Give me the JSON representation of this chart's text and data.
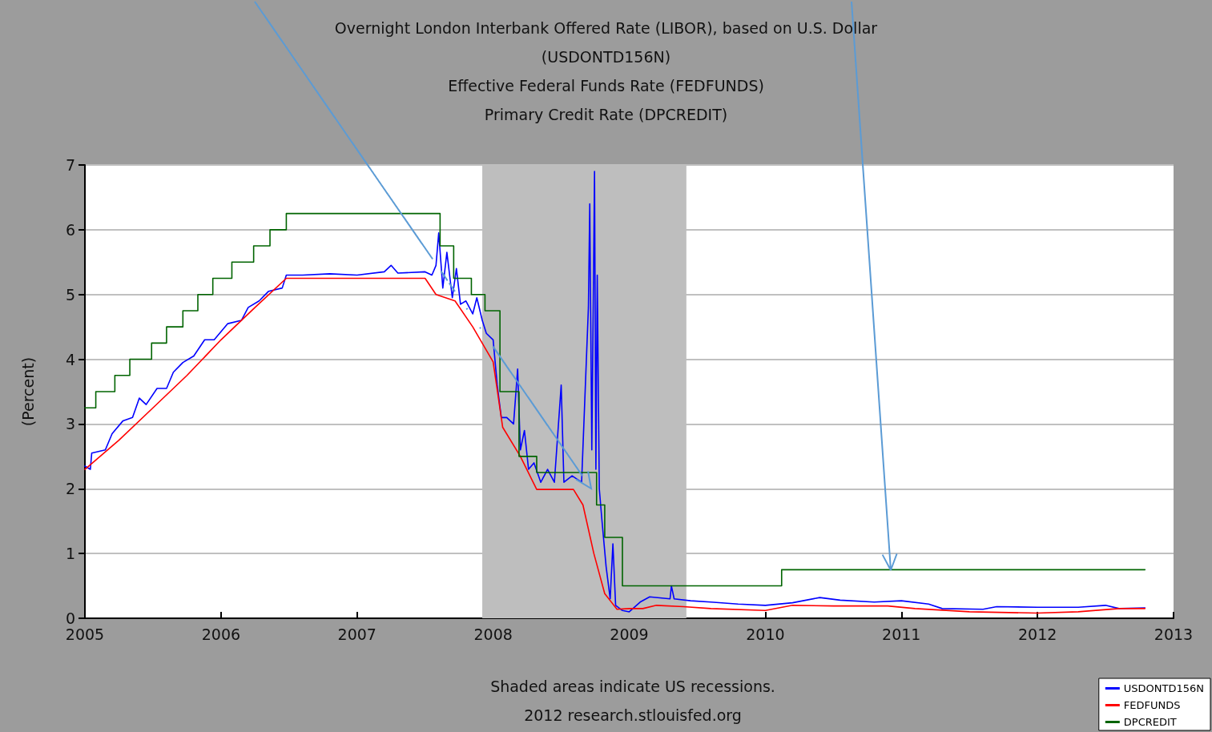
{
  "chart_data": {
    "type": "line",
    "title": "Overnight London Interbank Offered Rate (LIBOR), based on U.S. Dollar\n(USDONTD156N)",
    "subtitle": "Effective Federal Funds Rate (FEDFUNDS)\nPrimary Credit Rate (DPCREDIT)",
    "ylabel": "(Percent)",
    "xlim": [
      2005,
      2013
    ],
    "xticks": [
      2005,
      2006,
      2007,
      2008,
      2009,
      2010,
      2011,
      2012,
      2013
    ],
    "ylim": [
      0,
      7
    ],
    "yticks": [
      0,
      1,
      2,
      3,
      4,
      5,
      6,
      7
    ],
    "grid": "y",
    "legend": "bottom right",
    "marker": "none",
    "bands": [
      {
        "axis": "x",
        "from": 2007.92,
        "to": 2009.42,
        "color": "#bebebe"
      }
    ],
    "annotations": [
      "Shaded areas indicate US recessions.",
      "2012 research.stlouisfed.org"
    ],
    "series": [
      {
        "name": "USDONTD156N",
        "color": "#0000ff",
        "x": [
          2005.0,
          2005.04,
          2005.05,
          2005.15,
          2005.2,
          2005.28,
          2005.35,
          2005.4,
          2005.45,
          2005.53,
          2005.6,
          2005.65,
          2005.72,
          2005.8,
          2005.88,
          2005.95,
          2006.05,
          2006.15,
          2006.2,
          2006.28,
          2006.35,
          2006.45,
          2006.48,
          2006.6,
          2006.8,
          2007.0,
          2007.2,
          2007.25,
          2007.3,
          2007.5,
          2007.55,
          2007.58,
          2007.6,
          2007.63,
          2007.66,
          2007.7,
          2007.73,
          2007.76,
          2007.8,
          2007.85,
          2007.88,
          2007.92,
          2007.95,
          2008.0,
          2008.03,
          2008.06,
          2008.1,
          2008.15,
          2008.18,
          2008.2,
          2008.23,
          2008.26,
          2008.3,
          2008.35,
          2008.4,
          2008.45,
          2008.5,
          2008.52,
          2008.58,
          2008.65,
          2008.7,
          2008.71,
          2008.725,
          2008.745,
          2008.755,
          2008.765,
          2008.78,
          2008.8,
          2008.83,
          2008.86,
          2008.88,
          2008.9,
          2008.95,
          2009.0,
          2009.08,
          2009.15,
          2009.3,
          2009.31,
          2009.33,
          2009.45,
          2009.6,
          2009.8,
          2010.0,
          2010.2,
          2010.4,
          2010.55,
          2010.8,
          2011.0,
          2011.2,
          2011.3,
          2011.6,
          2011.7,
          2012.0,
          2012.3,
          2012.5,
          2012.6,
          2012.79
        ],
        "values": [
          2.35,
          2.3,
          2.55,
          2.6,
          2.85,
          3.05,
          3.1,
          3.4,
          3.3,
          3.55,
          3.55,
          3.8,
          3.95,
          4.05,
          4.3,
          4.3,
          4.55,
          4.6,
          4.8,
          4.9,
          5.05,
          5.1,
          5.3,
          5.3,
          5.32,
          5.3,
          5.35,
          5.45,
          5.33,
          5.35,
          5.3,
          5.45,
          5.95,
          5.1,
          5.65,
          4.95,
          5.4,
          4.85,
          4.9,
          4.7,
          4.95,
          4.6,
          4.4,
          4.3,
          3.6,
          3.1,
          3.1,
          3.0,
          3.85,
          2.6,
          2.9,
          2.3,
          2.4,
          2.1,
          2.3,
          2.1,
          3.6,
          2.1,
          2.2,
          2.1,
          4.8,
          6.4,
          2.6,
          6.9,
          2.3,
          5.3,
          2.0,
          1.5,
          0.8,
          0.3,
          1.15,
          0.2,
          0.12,
          0.1,
          0.25,
          0.33,
          0.3,
          0.5,
          0.3,
          0.27,
          0.25,
          0.22,
          0.2,
          0.24,
          0.32,
          0.28,
          0.25,
          0.27,
          0.22,
          0.15,
          0.14,
          0.18,
          0.17,
          0.17,
          0.2,
          0.15,
          0.16
        ]
      },
      {
        "name": "FEDFUNDS",
        "color": "#ff0000",
        "x": [
          2005.0,
          2005.25,
          2005.5,
          2005.75,
          2006.0,
          2006.25,
          2006.48,
          2007.5,
          2007.58,
          2007.72,
          2007.85,
          2008.0,
          2008.07,
          2008.2,
          2008.32,
          2008.59,
          2008.66,
          2008.74,
          2008.82,
          2008.91,
          2009.0,
          2009.1,
          2009.2,
          2009.4,
          2009.6,
          2010.0,
          2010.2,
          2010.5,
          2010.9,
          2011.1,
          2011.5,
          2012.0,
          2012.3,
          2012.6,
          2012.79
        ],
        "values": [
          2.3,
          2.75,
          3.25,
          3.75,
          4.3,
          4.8,
          5.25,
          5.25,
          5.0,
          4.9,
          4.5,
          3.96,
          2.95,
          2.5,
          1.99,
          1.99,
          1.75,
          1.0,
          0.38,
          0.14,
          0.15,
          0.15,
          0.2,
          0.18,
          0.15,
          0.12,
          0.2,
          0.19,
          0.19,
          0.15,
          0.1,
          0.08,
          0.1,
          0.15,
          0.15
        ]
      },
      {
        "name": "DPCREDIT",
        "color": "#006400",
        "type": "step",
        "x": [
          2005.0,
          2005.08,
          2005.22,
          2005.33,
          2005.49,
          2005.6,
          2005.72,
          2005.83,
          2005.94,
          2006.08,
          2006.24,
          2006.36,
          2006.48,
          2007.61,
          2007.71,
          2007.84,
          2007.94,
          2008.05,
          2008.19,
          2008.32,
          2008.76,
          2008.82,
          2008.95,
          2010.12,
          2012.79
        ],
        "values": [
          3.25,
          3.5,
          3.75,
          4.0,
          4.25,
          4.5,
          4.75,
          5.0,
          5.25,
          5.5,
          5.75,
          6.0,
          6.25,
          5.75,
          5.25,
          5.0,
          4.75,
          3.5,
          2.5,
          2.25,
          1.75,
          1.25,
          0.5,
          0.75,
          0.75
        ]
      }
    ]
  }
}
